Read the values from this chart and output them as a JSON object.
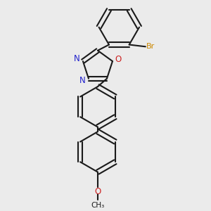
{
  "background_color": "#ebebeb",
  "bond_color": "#1a1a1a",
  "N_color": "#2222cc",
  "O_color": "#cc2222",
  "Br_color": "#cc8800",
  "figsize": [
    3.0,
    3.0
  ],
  "dpi": 100,
  "xlim": [
    -1.2,
    1.6
  ],
  "ylim": [
    -3.2,
    2.0
  ]
}
